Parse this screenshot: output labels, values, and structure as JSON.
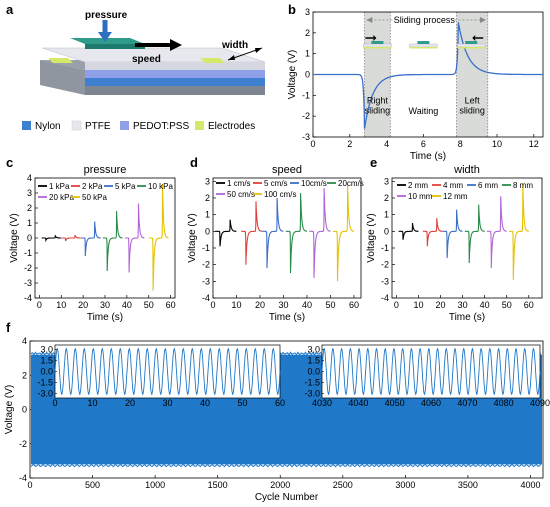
{
  "panel_a": {
    "letter": "a",
    "labels": {
      "pressure": "pressure",
      "speed": "speed",
      "width": "width"
    },
    "legend": [
      {
        "label": "Nylon",
        "color": "#3f7fd0"
      },
      {
        "label": "PTFE",
        "color": "#e6e8ee"
      },
      {
        "label": "PEDOT:PSS",
        "color": "#8fa0e8"
      },
      {
        "label": "Electrodes",
        "color": "#d6e86a"
      }
    ]
  },
  "chart_data": [
    {
      "panel": "b",
      "type": "line",
      "xlabel": "Time (s)",
      "ylabel": "Voltage (V)",
      "xlim": [
        0,
        12.5
      ],
      "ylim": [
        -3,
        3
      ],
      "xticks": [
        0,
        2,
        4,
        6,
        8,
        10,
        12
      ],
      "yticks": [
        -3,
        -2,
        -1,
        0,
        1,
        2,
        3
      ],
      "color": "#3b6fc9",
      "annotations": {
        "sliding_process": "Sliding process",
        "right_sliding": "Right\nsliding",
        "waiting": "Waiting",
        "left_sliding": "Left\nsliding"
      },
      "shaded_regions": [
        [
          2.8,
          4.2
        ],
        [
          7.8,
          9.5
        ]
      ],
      "events": [
        {
          "t": 2.8,
          "peak": -2.6
        },
        {
          "t": 7.9,
          "peak": 2.5
        }
      ]
    },
    {
      "panel": "c",
      "type": "line",
      "title": "pressure",
      "xlabel": "Time (s)",
      "ylabel": "Voltage (V)",
      "xlim": [
        -2,
        62
      ],
      "ylim": [
        -4,
        4
      ],
      "xticks": [
        0,
        10,
        20,
        30,
        40,
        50,
        60
      ],
      "yticks": [
        -4,
        -3,
        -2,
        -1,
        0,
        1,
        2,
        3,
        4
      ],
      "series": [
        {
          "name": "1 kPa",
          "color": "#000000",
          "t0": 3,
          "pos": 0.15,
          "neg": -0.15
        },
        {
          "name": "2 kPa",
          "color": "#e0403a",
          "t0": 12,
          "pos": 0.2,
          "neg": -0.2
        },
        {
          "name": "5 kPa",
          "color": "#3b6fc9",
          "t0": 21,
          "pos": 1.1,
          "neg": -1.2
        },
        {
          "name": "10 kPa",
          "color": "#2a8a4a",
          "t0": 31,
          "pos": 1.8,
          "neg": -2.2
        },
        {
          "name": "20 kPa",
          "color": "#b066d6",
          "t0": 41,
          "pos": 2.3,
          "neg": -2.3
        },
        {
          "name": "50 kPa",
          "color": "#e6c200",
          "t0": 52,
          "pos": 3.6,
          "neg": -3.5
        }
      ]
    },
    {
      "panel": "d",
      "type": "line",
      "title": "speed",
      "xlabel": "Time (s)",
      "ylabel": "Voltage (V)",
      "xlim": [
        0,
        63
      ],
      "ylim": [
        -4,
        3.2
      ],
      "xticks": [
        0,
        10,
        20,
        30,
        40,
        50,
        60
      ],
      "yticks": [
        -4,
        -3,
        -2,
        -1,
        0,
        1,
        2,
        3
      ],
      "series": [
        {
          "name": "1 cm/s",
          "color": "#000000",
          "t0": 3,
          "pos": 0.7,
          "neg": -0.9
        },
        {
          "name": "5 cm/s",
          "color": "#e0403a",
          "t0": 14,
          "pos": 1.8,
          "neg": -2.0
        },
        {
          "name": "10cm/s",
          "color": "#3b6fc9",
          "t0": 23,
          "pos": 2.0,
          "neg": -2.2
        },
        {
          "name": "20cm/s",
          "color": "#2a8a4a",
          "t0": 33,
          "pos": 2.3,
          "neg": -2.5
        },
        {
          "name": "50 cm/s",
          "color": "#b066d6",
          "t0": 43,
          "pos": 2.6,
          "neg": -2.8
        },
        {
          "name": "100 cm/s",
          "color": "#e6c200",
          "t0": 53,
          "pos": 2.8,
          "neg": -3.0
        }
      ]
    },
    {
      "panel": "e",
      "type": "line",
      "title": "width",
      "xlabel": "Time (s)",
      "ylabel": "Voltage (V)",
      "xlim": [
        -2,
        66
      ],
      "ylim": [
        -4,
        3.2
      ],
      "xticks": [
        0,
        10,
        20,
        30,
        40,
        50,
        60
      ],
      "yticks": [
        -4,
        -3,
        -2,
        -1,
        0,
        1,
        2,
        3
      ],
      "series": [
        {
          "name": "2 mm",
          "color": "#000000",
          "t0": 3,
          "pos": 0.5,
          "neg": -0.5
        },
        {
          "name": "4 mm",
          "color": "#e0403a",
          "t0": 14,
          "pos": 0.8,
          "neg": -0.9
        },
        {
          "name": "6 mm",
          "color": "#3b6fc9",
          "t0": 23,
          "pos": 1.3,
          "neg": -1.6
        },
        {
          "name": "8 mm",
          "color": "#2a8a4a",
          "t0": 33,
          "pos": 1.6,
          "neg": -1.9
        },
        {
          "name": "10 mm",
          "color": "#b066d6",
          "t0": 43,
          "pos": 2.1,
          "neg": -2.2
        },
        {
          "name": "12 mm",
          "color": "#e6c200",
          "t0": 53,
          "pos": 2.9,
          "neg": -2.9
        }
      ]
    },
    {
      "panel": "f",
      "type": "line",
      "xlabel": "Cycle Number",
      "ylabel": "Voltage (V)",
      "xlim": [
        0,
        4100
      ],
      "ylim": [
        -4,
        4
      ],
      "xticks": [
        0,
        500,
        1000,
        1500,
        2000,
        2500,
        3000,
        3500,
        4000
      ],
      "yticks": [
        -4,
        -2,
        0,
        2,
        4
      ],
      "color": "#1f78c8",
      "amplitude": 3.2,
      "insets": [
        {
          "xlim": [
            0,
            60
          ],
          "xticks": [
            0,
            10,
            20,
            30,
            40,
            50,
            60
          ],
          "yticks": [
            -3.0,
            -1.5,
            0.0,
            1.5,
            3.0
          ],
          "cycles": 25
        },
        {
          "xlim": [
            4030,
            4090
          ],
          "xticks": [
            4030,
            4040,
            4050,
            4060,
            4070,
            4080,
            4090
          ],
          "yticks": [
            -3.0,
            -1.5,
            0.0,
            1.5,
            3.0
          ],
          "cycles": 25
        }
      ]
    }
  ],
  "letters": {
    "b": "b",
    "c": "c",
    "d": "d",
    "e": "e",
    "f": "f"
  }
}
